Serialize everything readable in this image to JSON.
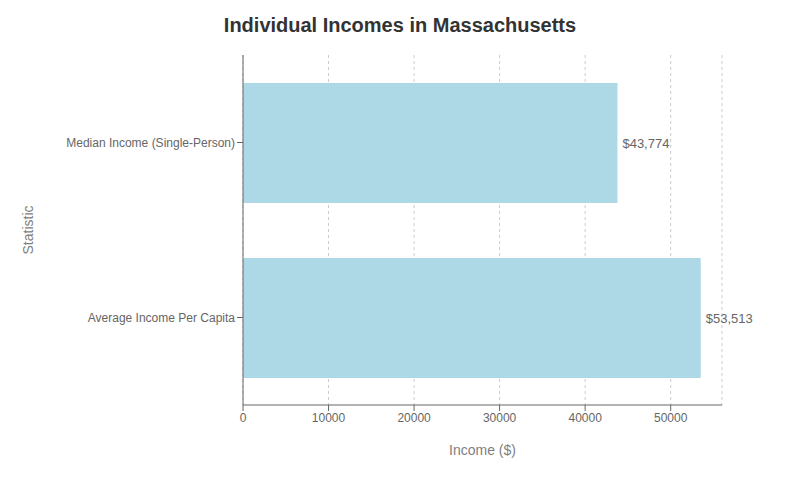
{
  "chart_data": {
    "type": "bar",
    "orientation": "horizontal",
    "title": "Individual Incomes in Massachusetts",
    "categories": [
      "Median Income (Single-Person)",
      "Average Income Per Capita"
    ],
    "values": [
      43774,
      53513
    ],
    "value_labels": [
      "$43,774",
      "$53,513"
    ],
    "data_labels": true,
    "color": "#add8e6",
    "xlabel": "Income ($)",
    "ylabel": "Statistic",
    "xlim": [
      0,
      56000
    ],
    "xticks": [
      0,
      10000,
      20000,
      30000,
      40000,
      50000
    ],
    "grid": true
  }
}
